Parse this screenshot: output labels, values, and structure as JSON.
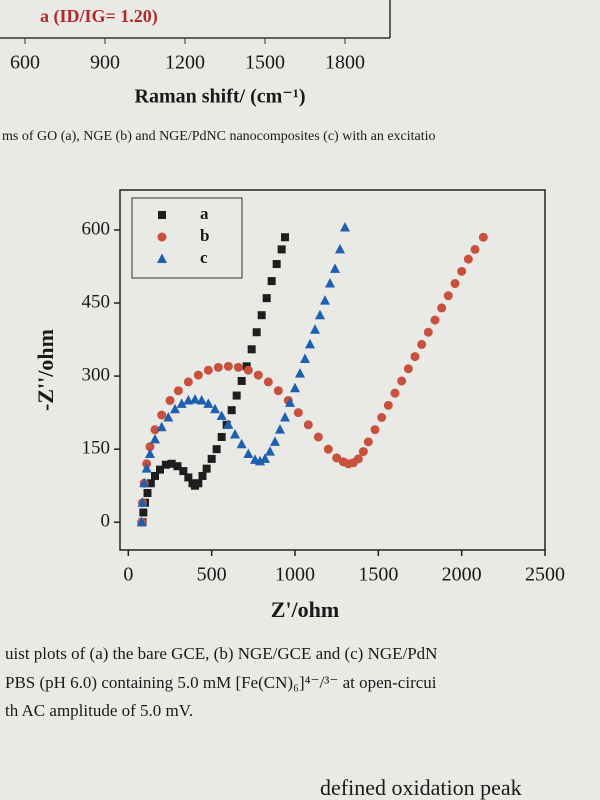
{
  "raman_fragment": {
    "annotation": "a (ID/IG= 1.20)",
    "xticks": [
      600,
      900,
      1200,
      1500,
      1800
    ],
    "xlabel": "Raman shift/ (cm⁻¹)"
  },
  "caption_top": "ms of GO (a), NGE (b) and NGE/PdNC nanocomposites (c) with an excitatio",
  "chart_data": {
    "type": "scatter",
    "xlabel": "Z'/ohm",
    "ylabel": "-Z''/ohm",
    "xlim": [
      -50,
      2500
    ],
    "ylim": [
      -57,
      682
    ],
    "xticks": [
      0,
      500,
      1000,
      1500,
      2000,
      2500
    ],
    "yticks": [
      0,
      150,
      300,
      450,
      600
    ],
    "legend": "upper left",
    "series": [
      {
        "name": "a",
        "color": "#1e1e1e",
        "marker": "square",
        "x": [
          85,
          90,
          100,
          115,
          135,
          160,
          190,
          225,
          260,
          295,
          330,
          360,
          385,
          400,
          420,
          445,
          470,
          500,
          530,
          560,
          590,
          620,
          650,
          680,
          710,
          740,
          770,
          800,
          830,
          860,
          890,
          920,
          940
        ],
        "values": [
          0,
          20,
          40,
          60,
          80,
          95,
          108,
          118,
          120,
          115,
          105,
          92,
          80,
          75,
          80,
          95,
          110,
          130,
          150,
          175,
          200,
          230,
          260,
          290,
          320,
          355,
          390,
          425,
          460,
          495,
          530,
          560,
          585
        ]
      },
      {
        "name": "b",
        "color": "#c8503c",
        "marker": "circle",
        "x": [
          80,
          85,
          95,
          110,
          130,
          160,
          200,
          250,
          300,
          360,
          420,
          480,
          540,
          600,
          660,
          720,
          780,
          840,
          900,
          960,
          1020,
          1080,
          1140,
          1200,
          1250,
          1290,
          1320,
          1350,
          1380,
          1410,
          1440,
          1480,
          1520,
          1560,
          1600,
          1640,
          1680,
          1720,
          1760,
          1800,
          1840,
          1880,
          1920,
          1960,
          2000,
          2040,
          2080,
          2130
        ],
        "values": [
          0,
          40,
          80,
          120,
          155,
          190,
          220,
          250,
          270,
          288,
          302,
          312,
          318,
          320,
          318,
          312,
          302,
          288,
          270,
          250,
          225,
          200,
          175,
          150,
          132,
          124,
          120,
          122,
          130,
          145,
          165,
          190,
          215,
          240,
          265,
          290,
          315,
          340,
          365,
          390,
          415,
          440,
          465,
          490,
          515,
          540,
          560,
          585
        ]
      },
      {
        "name": "c",
        "color": "#1f5fb0",
        "marker": "triangle",
        "x": [
          80,
          85,
          95,
          110,
          130,
          160,
          200,
          240,
          280,
          320,
          360,
          400,
          440,
          480,
          520,
          560,
          600,
          640,
          680,
          720,
          760,
          790,
          820,
          850,
          880,
          910,
          940,
          970,
          1000,
          1030,
          1060,
          1090,
          1120,
          1150,
          1180,
          1210,
          1240,
          1270,
          1300
        ],
        "values": [
          0,
          40,
          80,
          110,
          140,
          170,
          195,
          215,
          232,
          243,
          250,
          252,
          250,
          243,
          232,
          218,
          200,
          180,
          160,
          140,
          128,
          125,
          130,
          145,
          165,
          190,
          215,
          245,
          275,
          305,
          335,
          365,
          395,
          425,
          455,
          490,
          520,
          560,
          605
        ]
      }
    ]
  },
  "caption_bottom": [
    "uist plots of (a) the bare GCE, (b) NGE/GCE and (c) NGE/PdN",
    "PBS (pH 6.0) containing 5.0 mM [Fe(CN)₆]⁴⁻/³⁻ at open-circui",
    "th AC amplitude of 5.0 mV."
  ],
  "next_text": "defined oxidation peak"
}
